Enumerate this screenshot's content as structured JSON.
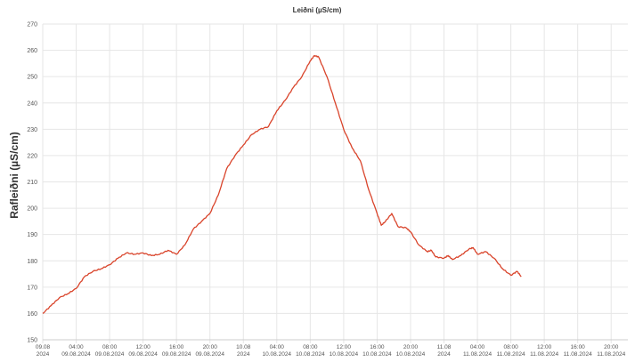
{
  "chart_data": {
    "type": "line",
    "title": "Leiðni (µS/cm)",
    "ylabel": "Rafleiðni (µS/cm)",
    "ylim": [
      150,
      270
    ],
    "yticks": [
      150,
      160,
      170,
      180,
      190,
      200,
      210,
      220,
      230,
      240,
      250,
      260,
      270
    ],
    "xlim": [
      "2024-08-09 00:00",
      "2024-08-11 22:00"
    ],
    "grid": true,
    "colors": {
      "series": "#d9442b",
      "grid": "#e6e6e6",
      "axis": "#cccccc"
    },
    "xticks": [
      {
        "t": "2024-08-09 00:00",
        "line1": "09.08",
        "line2": "2024"
      },
      {
        "t": "2024-08-09 04:00",
        "line1": "04:00",
        "line2": "09.08.2024"
      },
      {
        "t": "2024-08-09 08:00",
        "line1": "08:00",
        "line2": "09.08.2024"
      },
      {
        "t": "2024-08-09 12:00",
        "line1": "12:00",
        "line2": "09.08.2024"
      },
      {
        "t": "2024-08-09 16:00",
        "line1": "16:00",
        "line2": "09.08.2024"
      },
      {
        "t": "2024-08-09 20:00",
        "line1": "20:00",
        "line2": "09.08.2024"
      },
      {
        "t": "2024-08-10 00:00",
        "line1": "10.08",
        "line2": "2024"
      },
      {
        "t": "2024-08-10 04:00",
        "line1": "04:00",
        "line2": "10.08.2024"
      },
      {
        "t": "2024-08-10 08:00",
        "line1": "08:00",
        "line2": "10.08.2024"
      },
      {
        "t": "2024-08-10 12:00",
        "line1": "12:00",
        "line2": "10.08.2024"
      },
      {
        "t": "2024-08-10 16:00",
        "line1": "16:00",
        "line2": "10.08.2024"
      },
      {
        "t": "2024-08-10 20:00",
        "line1": "20:00",
        "line2": "10.08.2024"
      },
      {
        "t": "2024-08-11 00:00",
        "line1": "11.08",
        "line2": "2024"
      },
      {
        "t": "2024-08-11 04:00",
        "line1": "04:00",
        "line2": "11.08.2024"
      },
      {
        "t": "2024-08-11 08:00",
        "line1": "08:00",
        "line2": "11.08.2024"
      },
      {
        "t": "2024-08-11 12:00",
        "line1": "12:00",
        "line2": "11.08.2024"
      },
      {
        "t": "2024-08-11 16:00",
        "line1": "16:00",
        "line2": "11.08.2024"
      },
      {
        "t": "2024-08-11 20:00",
        "line1": "20:00",
        "line2": "11.08.2024"
      }
    ],
    "series": [
      {
        "points": [
          [
            "2024-08-09 00:00",
            160
          ],
          [
            "2024-08-09 01:00",
            163
          ],
          [
            "2024-08-09 02:00",
            166
          ],
          [
            "2024-08-09 03:00",
            167.5
          ],
          [
            "2024-08-09 04:00",
            169.5
          ],
          [
            "2024-08-09 05:00",
            174
          ],
          [
            "2024-08-09 06:00",
            176
          ],
          [
            "2024-08-09 07:00",
            177
          ],
          [
            "2024-08-09 08:00",
            178.5
          ],
          [
            "2024-08-09 09:00",
            181
          ],
          [
            "2024-08-09 10:00",
            183
          ],
          [
            "2024-08-09 11:00",
            182.5
          ],
          [
            "2024-08-09 12:00",
            183
          ],
          [
            "2024-08-09 13:00",
            182
          ],
          [
            "2024-08-09 14:00",
            182.5
          ],
          [
            "2024-08-09 15:00",
            184
          ],
          [
            "2024-08-09 16:00",
            182.5
          ],
          [
            "2024-08-09 17:00",
            186
          ],
          [
            "2024-08-09 18:00",
            192
          ],
          [
            "2024-08-09 19:00",
            195
          ],
          [
            "2024-08-09 20:00",
            198
          ],
          [
            "2024-08-09 21:00",
            205
          ],
          [
            "2024-08-09 22:00",
            215
          ],
          [
            "2024-08-09 23:00",
            220
          ],
          [
            "2024-08-10 00:00",
            224
          ],
          [
            "2024-08-10 01:00",
            228
          ],
          [
            "2024-08-10 02:00",
            230
          ],
          [
            "2024-08-10 03:00",
            231
          ],
          [
            "2024-08-10 04:00",
            237
          ],
          [
            "2024-08-10 05:00",
            241
          ],
          [
            "2024-08-10 06:00",
            246
          ],
          [
            "2024-08-10 07:00",
            250
          ],
          [
            "2024-08-10 08:00",
            256
          ],
          [
            "2024-08-10 08:30",
            258
          ],
          [
            "2024-08-10 09:00",
            257.5
          ],
          [
            "2024-08-10 10:00",
            250
          ],
          [
            "2024-08-10 11:00",
            240
          ],
          [
            "2024-08-10 12:00",
            230
          ],
          [
            "2024-08-10 13:00",
            223
          ],
          [
            "2024-08-10 14:00",
            218
          ],
          [
            "2024-08-10 15:00",
            207
          ],
          [
            "2024-08-10 16:00",
            198
          ],
          [
            "2024-08-10 16:30",
            193.5
          ],
          [
            "2024-08-10 17:00",
            195
          ],
          [
            "2024-08-10 17:45",
            198
          ],
          [
            "2024-08-10 18:30",
            193
          ],
          [
            "2024-08-10 19:30",
            192.5
          ],
          [
            "2024-08-10 20:00",
            191
          ],
          [
            "2024-08-10 21:00",
            186
          ],
          [
            "2024-08-10 22:00",
            183.5
          ],
          [
            "2024-08-10 22:30",
            184
          ],
          [
            "2024-08-10 23:00",
            181.5
          ],
          [
            "2024-08-11 00:00",
            181
          ],
          [
            "2024-08-11 00:30",
            182
          ],
          [
            "2024-08-11 01:00",
            180.5
          ],
          [
            "2024-08-11 02:00",
            182
          ],
          [
            "2024-08-11 03:00",
            184.5
          ],
          [
            "2024-08-11 03:30",
            185
          ],
          [
            "2024-08-11 04:00",
            182.5
          ],
          [
            "2024-08-11 05:00",
            183.5
          ],
          [
            "2024-08-11 06:00",
            181
          ],
          [
            "2024-08-11 07:00",
            177
          ],
          [
            "2024-08-11 08:00",
            174.5
          ],
          [
            "2024-08-11 08:45",
            176
          ],
          [
            "2024-08-11 09:15",
            174
          ]
        ]
      }
    ]
  }
}
